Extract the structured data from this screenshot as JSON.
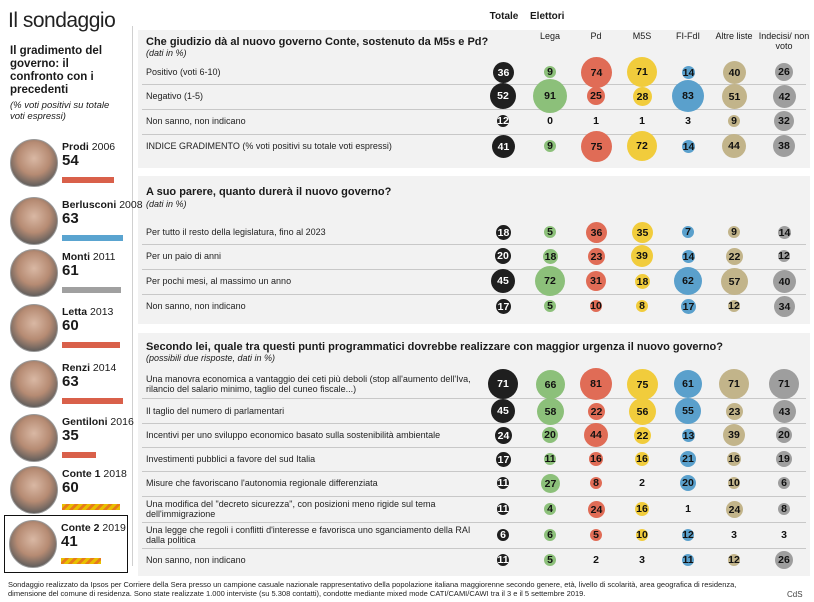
{
  "header": {
    "title": "Il sondaggio",
    "subtitle": "Il gradimento del governo: il confronto con i precedenti",
    "subtitle_note": "(% voti positivi su totale voti espressi)"
  },
  "governments": [
    {
      "name": "Prodi",
      "year": "2006",
      "value": "54",
      "bar": 54,
      "bar_style": "red"
    },
    {
      "name": "Berlusconi",
      "year": "2008",
      "value": "63",
      "bar": 63,
      "bar_style": "blue"
    },
    {
      "name": "Monti",
      "year": "2011",
      "value": "61",
      "bar": 61,
      "bar_style": "grey"
    },
    {
      "name": "Letta",
      "year": "2013",
      "value": "60",
      "bar": 60,
      "bar_style": "red"
    },
    {
      "name": "Renzi",
      "year": "2014",
      "value": "63",
      "bar": 63,
      "bar_style": "red"
    },
    {
      "name": "Gentiloni",
      "year": "2016",
      "value": "35",
      "bar": 35,
      "bar_style": "red"
    },
    {
      "name": "Conte 1",
      "year": "2018",
      "value": "60",
      "bar": 60,
      "bar_style": "hatch"
    },
    {
      "name": "Conte 2",
      "year": "2019",
      "value": "41",
      "bar": 41,
      "bar_style": "hatch"
    }
  ],
  "columns": {
    "totale": "Totale",
    "elettori": "Elettori",
    "parties": [
      "Lega",
      "Pd",
      "M5S",
      "FI-FdI",
      "Altre liste",
      "Indecisi/ non voto"
    ]
  },
  "colors": {
    "totale": "#1f1f1f",
    "parties": [
      "#8cc07a",
      "#e06c56",
      "#f1cc3c",
      "#5aa0cc",
      "#c2b48a",
      "#9e9e9e"
    ]
  },
  "chart_data": {
    "type": "table",
    "title": "Il sondaggio",
    "columns": [
      "Totale",
      "Lega",
      "Pd",
      "M5S",
      "FI-FdI",
      "Altre liste",
      "Indecisi/ non voto"
    ],
    "sections": [
      {
        "question": "Che giudizio dà al nuovo governo Conte, sostenuto da M5s e Pd?",
        "note": "(dati in %)",
        "rows": [
          {
            "label": "Positivo (voti 6-10)",
            "values": [
              36,
              9,
              74,
              71,
              14,
              40,
              26
            ]
          },
          {
            "label": "Negativo (1-5)",
            "values": [
              52,
              91,
              25,
              28,
              83,
              51,
              42
            ]
          },
          {
            "label": "Non sanno, non indicano",
            "values": [
              12,
              0,
              1,
              1,
              3,
              9,
              32
            ]
          },
          {
            "label": "INDICE GRADIMENTO (% voti positivi su totale voti espressi)",
            "values": [
              41,
              9,
              75,
              72,
              14,
              44,
              38
            ]
          }
        ]
      },
      {
        "question": "A suo parere, quanto durerà il nuovo governo?",
        "note": "(dati in %)",
        "rows": [
          {
            "label": "Per tutto il resto della legislatura, fino al 2023",
            "values": [
              18,
              5,
              36,
              35,
              7,
              9,
              14
            ]
          },
          {
            "label": "Per un paio di anni",
            "values": [
              20,
              18,
              23,
              39,
              14,
              22,
              12
            ]
          },
          {
            "label": "Per pochi mesi, al massimo un anno",
            "values": [
              45,
              72,
              31,
              18,
              62,
              57,
              40
            ]
          },
          {
            "label": "Non sanno, non indicano",
            "values": [
              17,
              5,
              10,
              8,
              17,
              12,
              34
            ]
          }
        ]
      },
      {
        "question": "Secondo lei, quale tra questi punti programmatici dovrebbe realizzare con maggior urgenza il nuovo governo?",
        "note": "(possibili due risposte, dati in %)",
        "rows": [
          {
            "label": "Una manovra economica a vantaggio dei ceti più deboli (stop all'aumento dell'Iva, rilancio del salario minimo, taglio del cuneo fiscale...)",
            "values": [
              71,
              66,
              81,
              75,
              61,
              71,
              71
            ]
          },
          {
            "label": "Il taglio del numero di parlamentari",
            "values": [
              45,
              58,
              22,
              56,
              55,
              23,
              43
            ]
          },
          {
            "label": "Incentivi per uno sviluppo economico basato sulla sostenibilità ambientale",
            "values": [
              24,
              20,
              44,
              22,
              13,
              39,
              20
            ]
          },
          {
            "label": "Investimenti pubblici a favore del sud Italia",
            "values": [
              17,
              11,
              16,
              16,
              21,
              16,
              19
            ]
          },
          {
            "label": "Misure che favoriscano l'autonomia regionale differenziata",
            "values": [
              11,
              27,
              8,
              2,
              20,
              10,
              6
            ]
          },
          {
            "label": "Una modifica del \"decreto sicurezza\", con posizioni meno rigide sul tema dell'immigrazione",
            "values": [
              11,
              4,
              24,
              16,
              1,
              24,
              8
            ]
          },
          {
            "label": "Una legge che regoli i conflitti d'interesse e favorisca uno sganciamento della RAI dalla politica",
            "values": [
              6,
              6,
              5,
              10,
              12,
              3,
              3
            ]
          },
          {
            "label": "Non sanno, non indicano",
            "values": [
              11,
              5,
              2,
              3,
              11,
              12,
              26
            ]
          }
        ]
      }
    ]
  },
  "footer": {
    "note": "Sondaggio realizzato da Ipsos per Corriere della Sera presso un campione casuale nazionale rappresentativo della popolazione italiana maggiorenne secondo genere, età, livello di scolarità, area geografica di residenza, dimensione del comune di residenza. Sono state realizzate 1.000 interviste (su 5.308 contatti), condotte mediante mixed mode CATI/CAMI/CAWI tra il 3 e il 5 settembre 2019.",
    "credit": "CdS"
  }
}
